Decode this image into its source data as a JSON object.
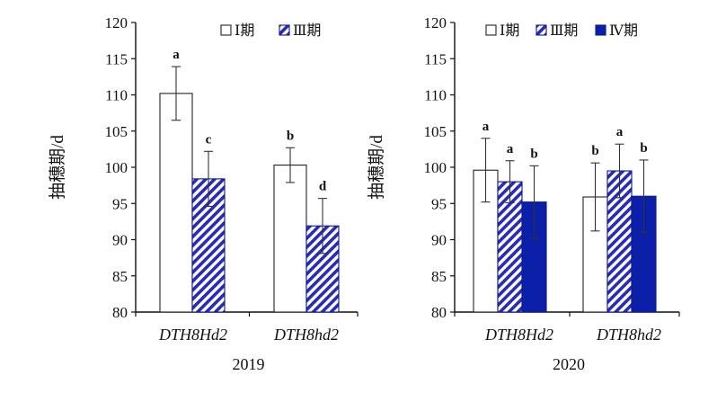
{
  "chart_data": [
    {
      "type": "bar",
      "ylabel": "抽穗期/d",
      "xlabel": "2019",
      "ylim": [
        80,
        120
      ],
      "yticks": [
        80,
        85,
        90,
        95,
        100,
        105,
        110,
        115,
        120
      ],
      "categories": [
        "DTH8Hd2",
        "DTH8hd2"
      ],
      "series": [
        {
          "name": "Ⅰ期",
          "pattern": "open",
          "values": [
            110.2,
            100.3
          ],
          "errors": [
            3.7,
            2.4
          ],
          "labels": [
            "a",
            "b"
          ]
        },
        {
          "name": "Ⅲ期",
          "pattern": "hatched",
          "values": [
            98.4,
            91.9
          ],
          "errors": [
            3.8,
            3.8
          ],
          "labels": [
            "c",
            "d"
          ]
        }
      ],
      "legend": "top-right",
      "grid": false
    },
    {
      "type": "bar",
      "ylabel": "抽穗期/d",
      "xlabel": "2020",
      "ylim": [
        80,
        120
      ],
      "yticks": [
        80,
        85,
        90,
        95,
        100,
        105,
        110,
        115,
        120
      ],
      "categories": [
        "DTH8Hd2",
        "DTH8hd2"
      ],
      "series": [
        {
          "name": "Ⅰ期",
          "pattern": "open",
          "values": [
            99.6,
            95.9
          ],
          "errors": [
            4.4,
            4.7
          ],
          "labels": [
            "a",
            "b"
          ]
        },
        {
          "name": "Ⅲ期",
          "pattern": "hatched",
          "values": [
            98.0,
            99.5
          ],
          "errors": [
            2.9,
            3.7
          ],
          "labels": [
            "a",
            "a"
          ]
        },
        {
          "name": "Ⅳ期",
          "pattern": "solid",
          "values": [
            95.2,
            96.0
          ],
          "errors": [
            5.0,
            5.0
          ],
          "labels": [
            "b",
            "b"
          ]
        }
      ],
      "legend": "top",
      "grid": false
    }
  ],
  "colors": {
    "axis": "#111111",
    "open_fill": "#ffffff",
    "hatch_stripe": "#2a2ab8",
    "solid_fill": "#0b1fa8"
  }
}
